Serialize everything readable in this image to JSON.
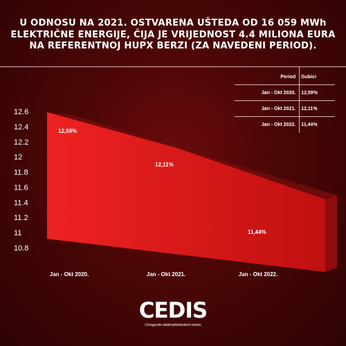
{
  "headline": "U ODNOSU NA 2021. OSTVARENA UŠTEDA OD 16 059 MWh ELEKTRIČNE ENERGIJE, ČIJA JE VRIJEDNOST 4.4 MILIONA EURA NA REFERENTNOJ HUPX BERZI (ZA NAVEDENI PERIOD).",
  "table": {
    "headers": [
      "Period",
      "Gubici"
    ],
    "rows": [
      [
        "Jan - Okt 2020.",
        "12,59%"
      ],
      [
        "Jan - Okt 2021.",
        "12,11%"
      ],
      [
        "Jan - Okt 2022.",
        "11,44%"
      ]
    ]
  },
  "chart_data": {
    "type": "area",
    "categories": [
      "Jan - Okt 2020.",
      "Jan - Okt 2021.",
      "Jan - Okt 2022."
    ],
    "series": [
      {
        "values": [
          12.59,
          12.11,
          11.44
        ]
      }
    ],
    "data_labels": [
      "12,59%",
      "12,11%",
      "11,44%"
    ],
    "yticks": [
      "12.6",
      "12.4",
      "12.2",
      "12",
      "11.8",
      "11.6",
      "11.4",
      "11.2",
      "11",
      "10.8"
    ],
    "ylim": [
      10.8,
      12.6
    ],
    "grid": false,
    "colors": {
      "front": "#e01b1b",
      "side": "#9a0e0e",
      "top": "#6a0a0a"
    }
  },
  "logo": {
    "mark": "CEDIS",
    "subtitle": "Crnogorski elektrodistributivni sistem"
  }
}
